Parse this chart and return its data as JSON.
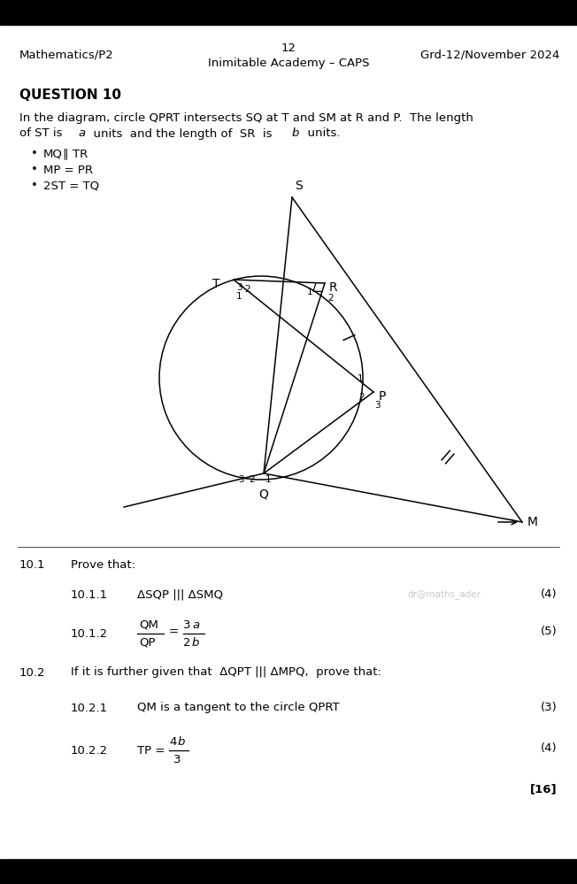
{
  "header_left": "Mathematics/P2",
  "header_center": "12",
  "header_sub": "Inimitable Academy – CAPS",
  "header_right": "Grd-12/November 2024",
  "question_title": "QUESTION 10",
  "bg_color": "#ffffff",
  "text_color": "#000000",
  "watermark": "dr@maths_ader",
  "total_marks": "[16]",
  "top_bar_height": 28,
  "bottom_bar_height": 28
}
